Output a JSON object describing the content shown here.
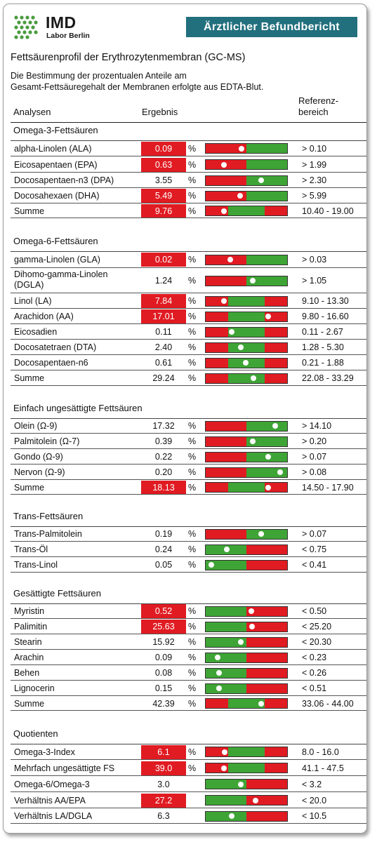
{
  "header": {
    "logo_name": "IMD",
    "logo_sub": "Labor Berlin",
    "banner": "Ärztlicher Befundbericht"
  },
  "report": {
    "title": "Fettsäurenprofil der Erythrozytenmembran (GC-MS)",
    "description_line1": "Die Bestimmung der prozentualen Anteile am",
    "description_line2": "Gesamt-Fettsäuregehalt der Membranen erfolgte aus EDTA-Blut."
  },
  "columns": {
    "analyses": "Analysen",
    "result": "Ergebnis",
    "reference_line1": "Referenz-",
    "reference_line2": "bereich"
  },
  "colors": {
    "red": "#e01b22",
    "green": "#3ea435",
    "banner": "#226f7d"
  },
  "sections": [
    {
      "title": "Omega-3-Fettsäuren",
      "rows": [
        {
          "name": "alpha-Linolen (ALA)",
          "value": "0.09",
          "flag": true,
          "unit": "%",
          "ref": "> 0.10",
          "bar": {
            "segments": [
              [
                "red",
                0.5
              ],
              [
                "green",
                0.5
              ]
            ],
            "marker": 0.44
          }
        },
        {
          "name": "Eicosapentaen (EPA)",
          "value": "0.63",
          "flag": true,
          "unit": "%",
          "ref": "> 1.99",
          "bar": {
            "segments": [
              [
                "red",
                0.5
              ],
              [
                "green",
                0.5
              ]
            ],
            "marker": 0.22
          }
        },
        {
          "name": "Docosapentaen-n3 (DPA)",
          "value": "3.55",
          "flag": false,
          "unit": "%",
          "ref": "> 2.30",
          "bar": {
            "segments": [
              [
                "red",
                0.5
              ],
              [
                "green",
                0.5
              ]
            ],
            "marker": 0.68
          }
        },
        {
          "name": "Docosahexaen (DHA)",
          "value": "5.49",
          "flag": true,
          "unit": "%",
          "ref": "> 5.99",
          "bar": {
            "segments": [
              [
                "red",
                0.5
              ],
              [
                "green",
                0.5
              ]
            ],
            "marker": 0.42
          }
        },
        {
          "name": "Summe",
          "value": "9.76",
          "flag": true,
          "unit": "%",
          "ref": "10.40 - 19.00",
          "bar": {
            "segments": [
              [
                "red",
                0.28
              ],
              [
                "green",
                0.44
              ],
              [
                "red",
                0.28
              ]
            ],
            "marker": 0.22
          }
        }
      ]
    },
    {
      "title": "Omega-6-Fettsäuren",
      "rows": [
        {
          "name": "gamma-Linolen (GLA)",
          "value": "0.02",
          "flag": true,
          "unit": "%",
          "ref": "> 0.03",
          "bar": {
            "segments": [
              [
                "red",
                0.5
              ],
              [
                "green",
                0.5
              ]
            ],
            "marker": 0.3
          }
        },
        {
          "name": "Dihomo-gamma-Linolen (DGLA)",
          "value": "1.24",
          "flag": false,
          "unit": "%",
          "ref": "> 1.05",
          "bar": {
            "segments": [
              [
                "red",
                0.5
              ],
              [
                "green",
                0.5
              ]
            ],
            "marker": 0.58
          }
        },
        {
          "name": "Linol (LA)",
          "value": "7.84",
          "flag": true,
          "unit": "%",
          "ref": "9.10 - 13.30",
          "bar": {
            "segments": [
              [
                "red",
                0.28
              ],
              [
                "green",
                0.44
              ],
              [
                "red",
                0.28
              ]
            ],
            "marker": 0.22
          }
        },
        {
          "name": "Arachidon (AA)",
          "value": "17.01",
          "flag": true,
          "unit": "%",
          "ref": "9.80 - 16.60",
          "bar": {
            "segments": [
              [
                "red",
                0.28
              ],
              [
                "green",
                0.44
              ],
              [
                "red",
                0.28
              ]
            ],
            "marker": 0.77
          }
        },
        {
          "name": "Eicosadien",
          "value": "0.11",
          "flag": false,
          "unit": "%",
          "ref": "0.11 - 2.67",
          "bar": {
            "segments": [
              [
                "red",
                0.28
              ],
              [
                "green",
                0.44
              ],
              [
                "red",
                0.28
              ]
            ],
            "marker": 0.32
          }
        },
        {
          "name": "Docosatetraen (DTA)",
          "value": "2.40",
          "flag": false,
          "unit": "%",
          "ref": "1.28 - 5.30",
          "bar": {
            "segments": [
              [
                "red",
                0.28
              ],
              [
                "green",
                0.44
              ],
              [
                "red",
                0.28
              ]
            ],
            "marker": 0.43
          }
        },
        {
          "name": "Docosapentaen-n6",
          "value": "0.61",
          "flag": false,
          "unit": "%",
          "ref": "0.21 - 1.88",
          "bar": {
            "segments": [
              [
                "red",
                0.28
              ],
              [
                "green",
                0.44
              ],
              [
                "red",
                0.28
              ]
            ],
            "marker": 0.49
          }
        },
        {
          "name": "Summe",
          "value": "29.24",
          "flag": false,
          "unit": "%",
          "ref": "22.08 - 33.29",
          "bar": {
            "segments": [
              [
                "red",
                0.28
              ],
              [
                "green",
                0.44
              ],
              [
                "red",
                0.28
              ]
            ],
            "marker": 0.59
          }
        }
      ]
    },
    {
      "title": "Einfach ungesättigte Fettsäuren",
      "rows": [
        {
          "name": "Olein (Ω-9)",
          "value": "17.32",
          "flag": false,
          "unit": "%",
          "ref": "> 14.10",
          "bar": {
            "segments": [
              [
                "red",
                0.5
              ],
              [
                "green",
                0.5
              ]
            ],
            "marker": 0.85
          }
        },
        {
          "name": "Palmitolein (Ω-7)",
          "value": "0.39",
          "flag": false,
          "unit": "%",
          "ref": "> 0.20",
          "bar": {
            "segments": [
              [
                "red",
                0.5
              ],
              [
                "green",
                0.5
              ]
            ],
            "marker": 0.58
          }
        },
        {
          "name": "Gondo (Ω-9)",
          "value": "0.22",
          "flag": false,
          "unit": "%",
          "ref": "> 0.07",
          "bar": {
            "segments": [
              [
                "red",
                0.5
              ],
              [
                "green",
                0.5
              ]
            ],
            "marker": 0.77
          }
        },
        {
          "name": "Nervon (Ω-9)",
          "value": "0.20",
          "flag": false,
          "unit": "%",
          "ref": "> 0.08",
          "bar": {
            "segments": [
              [
                "red",
                0.5
              ],
              [
                "green",
                0.5
              ]
            ],
            "marker": 0.91
          }
        },
        {
          "name": "Summe",
          "value": "18.13",
          "flag": true,
          "unit": "%",
          "ref": "14.50 - 17.90",
          "bar": {
            "segments": [
              [
                "red",
                0.28
              ],
              [
                "green",
                0.44
              ],
              [
                "red",
                0.28
              ]
            ],
            "marker": 0.77
          }
        }
      ]
    },
    {
      "title": "Trans-Fettsäuren",
      "rows": [
        {
          "name": "Trans-Palmitolein",
          "value": "0.19",
          "flag": false,
          "unit": "%",
          "ref": "> 0.07",
          "bar": {
            "segments": [
              [
                "red",
                0.5
              ],
              [
                "green",
                0.5
              ]
            ],
            "marker": 0.68
          }
        },
        {
          "name": "Trans-Öl",
          "value": "0.24",
          "flag": false,
          "unit": "%",
          "ref": "< 0.75",
          "bar": {
            "segments": [
              [
                "green",
                0.5
              ],
              [
                "red",
                0.5
              ]
            ],
            "marker": 0.26
          }
        },
        {
          "name": "Trans-Linol",
          "value": "0.05",
          "flag": false,
          "unit": "%",
          "ref": "< 0.41",
          "bar": {
            "segments": [
              [
                "green",
                0.5
              ],
              [
                "red",
                0.5
              ]
            ],
            "marker": 0.07
          }
        }
      ]
    },
    {
      "title": "Gesättigte Fettsäuren",
      "rows": [
        {
          "name": "Myristin",
          "value": "0.52",
          "flag": true,
          "unit": "%",
          "ref": "< 0.50",
          "bar": {
            "segments": [
              [
                "green",
                0.5
              ],
              [
                "red",
                0.5
              ]
            ],
            "marker": 0.56
          }
        },
        {
          "name": "Palimitin",
          "value": "25.63",
          "flag": true,
          "unit": "%",
          "ref": "< 25.20",
          "bar": {
            "segments": [
              [
                "green",
                0.5
              ],
              [
                "red",
                0.5
              ]
            ],
            "marker": 0.57
          }
        },
        {
          "name": "Stearin",
          "value": "15.92",
          "flag": false,
          "unit": "%",
          "ref": "< 20.30",
          "bar": {
            "segments": [
              [
                "green",
                0.5
              ],
              [
                "red",
                0.5
              ]
            ],
            "marker": 0.43
          }
        },
        {
          "name": "Arachin",
          "value": "0.09",
          "flag": false,
          "unit": "%",
          "ref": "< 0.23",
          "bar": {
            "segments": [
              [
                "green",
                0.5
              ],
              [
                "red",
                0.5
              ]
            ],
            "marker": 0.15
          }
        },
        {
          "name": "Behen",
          "value": "0.08",
          "flag": false,
          "unit": "%",
          "ref": "< 0.26",
          "bar": {
            "segments": [
              [
                "green",
                0.5
              ],
              [
                "red",
                0.5
              ]
            ],
            "marker": 0.16
          }
        },
        {
          "name": "Lignocerin",
          "value": "0.15",
          "flag": false,
          "unit": "%",
          "ref": "< 0.51",
          "bar": {
            "segments": [
              [
                "green",
                0.5
              ],
              [
                "red",
                0.5
              ]
            ],
            "marker": 0.16
          }
        },
        {
          "name": "Summe",
          "value": "42.39",
          "flag": false,
          "unit": "%",
          "ref": "33.06 - 44.00",
          "bar": {
            "segments": [
              [
                "red",
                0.28
              ],
              [
                "green",
                0.44
              ],
              [
                "red",
                0.28
              ]
            ],
            "marker": 0.68
          }
        }
      ]
    },
    {
      "title": "Quotienten",
      "rows": [
        {
          "name": "Omega-3-Index",
          "value": "6.1",
          "flag": true,
          "unit": "%",
          "ref": "8.0 - 16.0",
          "bar": {
            "segments": [
              [
                "red",
                0.28
              ],
              [
                "green",
                0.44
              ],
              [
                "red",
                0.28
              ]
            ],
            "marker": 0.23
          }
        },
        {
          "name": "Mehrfach ungesättigte FS",
          "value": "39.0",
          "flag": true,
          "unit": "%",
          "ref": "41.1 - 47.5",
          "bar": {
            "segments": [
              [
                "red",
                0.28
              ],
              [
                "green",
                0.44
              ],
              [
                "red",
                0.28
              ]
            ],
            "marker": 0.22
          }
        },
        {
          "name": "Omega-6/Omega-3",
          "value": "3.0",
          "flag": false,
          "unit": "",
          "ref": "< 3.2",
          "bar": {
            "segments": [
              [
                "green",
                0.5
              ],
              [
                "red",
                0.5
              ]
            ],
            "marker": 0.43
          }
        },
        {
          "name": "Verhältnis AA/EPA",
          "value": "27.2",
          "flag": true,
          "unit": "",
          "ref": "< 20.0",
          "bar": {
            "segments": [
              [
                "green",
                0.5
              ],
              [
                "red",
                0.5
              ]
            ],
            "marker": 0.61
          }
        },
        {
          "name": "Verhältnis LA/DGLA",
          "value": "6.3",
          "flag": false,
          "unit": "",
          "ref": "< 10.5",
          "bar": {
            "segments": [
              [
                "green",
                0.5
              ],
              [
                "red",
                0.5
              ]
            ],
            "marker": 0.32
          }
        }
      ]
    }
  ]
}
